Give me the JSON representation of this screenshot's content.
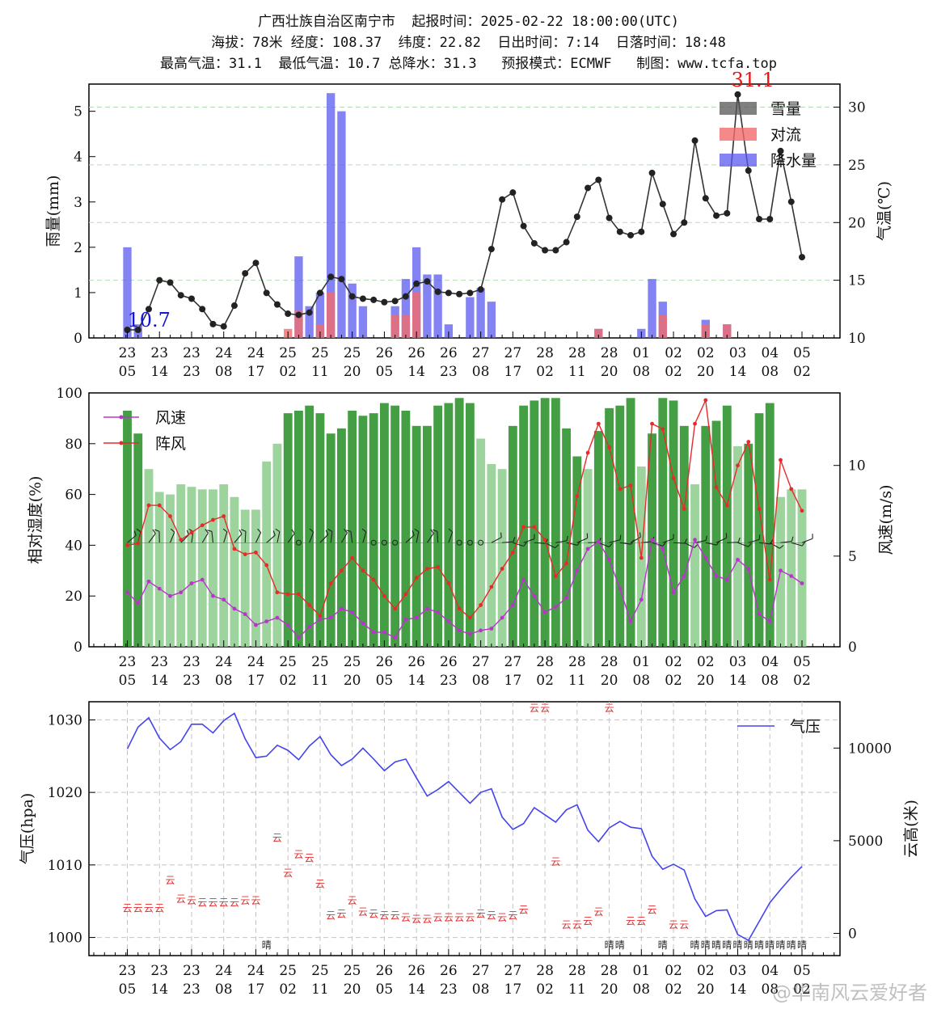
{
  "header": {
    "line1": "广西壮族自治区南宁市  起报时间：2025-02-22 18:00:00(UTC)",
    "line2": "海拔：78米 经度：108.37  纬度：22.82  日出时间：7:14  日落时间：18:48",
    "line3": "最高气温：31.1  最低气温：10.7 总降水：31.3   预报模式：ECMWF   制图：www.tcfa.top"
  },
  "watermark": "@华南风云爱好者",
  "colors": {
    "precip": "#5a5af0",
    "convection": "#f26b6b",
    "snow": "#555555",
    "temp": "#333333",
    "humidity_dark": "#3a9a3a",
    "humidity_light": "#8ccc8c",
    "wind": "#bb33cc",
    "gust": "#e82a2a",
    "pressure": "#4444ee",
    "cloud": "#e03030"
  },
  "chart_data": [
    {
      "type": "bar",
      "title": "",
      "x_tick_labels": [
        "23\n05",
        "23\n14",
        "23\n23",
        "24\n08",
        "24\n17",
        "25\n02",
        "25\n11",
        "25\n20",
        "26\n05",
        "26\n14",
        "26\n23",
        "27\n08",
        "27\n17",
        "28\n02",
        "28\n11",
        "28\n20",
        "01\n08",
        "02\n02",
        "02\n20",
        "03\n14",
        "04\n08",
        "05\n02"
      ],
      "x_tick_index": [
        0,
        3,
        6,
        9,
        12,
        15,
        18,
        21,
        24,
        27,
        30,
        33,
        36,
        39,
        42,
        45,
        48,
        51,
        54,
        57,
        60,
        63
      ],
      "ylabel": "雨量(mm)",
      "y2label": "气温(℃)",
      "ylim": [
        0,
        5.6
      ],
      "y2lim": [
        10,
        32
      ],
      "yticks": [
        "0",
        "1",
        "2",
        "3",
        "4",
        "5"
      ],
      "y2ticks": [
        "10",
        "15",
        "20",
        "25",
        "30"
      ],
      "legend": [
        "雪量",
        "对流",
        "降水量"
      ],
      "precip": [
        2.0,
        0.3,
        0,
        0,
        0,
        0,
        0,
        0,
        0,
        0,
        0,
        0,
        0,
        0,
        0,
        0,
        1.8,
        0.7,
        1.0,
        5.4,
        5.0,
        1.2,
        0.7,
        0,
        0,
        0.7,
        1.3,
        2.0,
        1.4,
        1.4,
        0.3,
        0,
        0.9,
        1.1,
        0.8,
        0,
        0,
        0,
        0,
        0,
        0,
        0,
        0,
        0,
        0.2,
        0,
        0,
        0,
        0.2,
        1.3,
        0.8,
        0,
        0,
        0,
        0.4,
        0,
        0.3,
        0,
        0,
        0,
        0,
        0,
        0,
        0
      ],
      "convection": [
        0,
        0,
        0,
        0,
        0,
        0,
        0,
        0,
        0,
        0,
        0,
        0,
        0,
        0,
        0,
        0.2,
        0.6,
        0,
        0.3,
        1.0,
        0,
        0,
        0,
        0,
        0,
        0.5,
        0.5,
        1.0,
        0,
        0,
        0,
        0,
        0,
        0,
        0,
        0,
        0,
        0,
        0,
        0,
        0,
        0,
        0,
        0,
        0.2,
        0,
        0,
        0,
        0,
        0,
        0.5,
        0,
        0,
        0,
        0.3,
        0,
        0.3,
        0,
        0,
        0,
        0,
        0,
        0,
        0
      ],
      "temperature": [
        10.7,
        10.7,
        12.5,
        15.0,
        14.8,
        13.7,
        13.4,
        12.5,
        11.2,
        11.0,
        12.8,
        15.6,
        16.5,
        13.9,
        12.9,
        12.1,
        12.0,
        12.2,
        13.9,
        15.3,
        15.1,
        13.6,
        13.4,
        13.3,
        13.1,
        13.2,
        13.6,
        14.7,
        14.9,
        14.0,
        13.9,
        13.8,
        13.9,
        14.2,
        17.7,
        22.0,
        22.6,
        19.7,
        18.2,
        17.6,
        17.6,
        18.3,
        20.5,
        23.0,
        23.7,
        20.4,
        19.2,
        18.9,
        19.2,
        24.3,
        21.6,
        19.0,
        20.0,
        27.1,
        22.1,
        20.6,
        20.8,
        31.1,
        24.5,
        20.3,
        20.3,
        26.2,
        21.8,
        17.0
      ],
      "annotations": [
        {
          "text": "10.7",
          "x_index": 0,
          "value": 10.7
        },
        {
          "text": "31.1",
          "x_index": 57,
          "value": 31.1
        }
      ]
    },
    {
      "type": "bar",
      "ylabel": "相对湿度(%)",
      "y2label": "风速(m/s)",
      "ylim": [
        0,
        100
      ],
      "y2lim": [
        0,
        14
      ],
      "yticks": [
        "0",
        "20",
        "40",
        "60",
        "80",
        "100"
      ],
      "y2ticks": [
        "0",
        "5",
        "10"
      ],
      "legend": [
        "风速",
        "阵风"
      ],
      "humidity": [
        93,
        84,
        70,
        61,
        60,
        64,
        63,
        62,
        62,
        64,
        59,
        54,
        54,
        73,
        80,
        92,
        93,
        95,
        92,
        84,
        86,
        93,
        91,
        92,
        96,
        95,
        93,
        87,
        87,
        95,
        96,
        98,
        96,
        82,
        72,
        70,
        87,
        95,
        97,
        98,
        98,
        86,
        75,
        70,
        85,
        94,
        95,
        98,
        71,
        84,
        98,
        97,
        87,
        64,
        87,
        89,
        95,
        79,
        80,
        92,
        96,
        59,
        62,
        62
      ],
      "humidity_dark": [
        1,
        1,
        0,
        0,
        0,
        0,
        0,
        0,
        0,
        0,
        0,
        0,
        0,
        0,
        0,
        1,
        1,
        1,
        1,
        1,
        1,
        1,
        1,
        1,
        1,
        1,
        1,
        1,
        1,
        1,
        1,
        1,
        1,
        0,
        0,
        0,
        1,
        1,
        1,
        1,
        1,
        1,
        1,
        0,
        1,
        1,
        1,
        1,
        0,
        1,
        1,
        1,
        1,
        0,
        1,
        1,
        1,
        0,
        1,
        1,
        1,
        0,
        0,
        0
      ],
      "wind_speed": [
        3.0,
        2.4,
        3.6,
        3.2,
        2.8,
        3.0,
        3.5,
        3.7,
        2.8,
        2.6,
        2.1,
        1.8,
        1.2,
        1.4,
        1.6,
        1.2,
        0.5,
        1.1,
        1.5,
        1.6,
        2.1,
        1.9,
        1.3,
        0.8,
        0.8,
        0.5,
        1.5,
        1.6,
        2.1,
        1.9,
        1.4,
        0.9,
        0.7,
        0.9,
        1.0,
        1.6,
        2.3,
        3.7,
        2.8,
        1.9,
        2.2,
        2.7,
        4.2,
        5.4,
        5.8,
        4.8,
        3.2,
        1.4,
        2.6,
        5.9,
        5.4,
        3.0,
        3.9,
        5.9,
        4.9,
        3.9,
        3.7,
        4.8,
        4.3,
        1.8,
        1.4,
        4.2,
        3.9,
        3.5
      ],
      "gust": [
        5.6,
        5.7,
        7.8,
        7.8,
        7.2,
        5.9,
        6.3,
        6.7,
        7.0,
        7.2,
        5.4,
        5.1,
        5.2,
        4.5,
        3.0,
        2.9,
        2.9,
        2.3,
        1.7,
        3.5,
        4.2,
        4.9,
        4.2,
        3.7,
        2.8,
        2.1,
        2.9,
        3.8,
        4.3,
        4.4,
        3.5,
        2.1,
        1.6,
        2.3,
        3.3,
        4.3,
        5.2,
        6.6,
        6.6,
        5.9,
        3.9,
        4.6,
        8.3,
        10.7,
        12.3,
        11.0,
        8.7,
        8.9,
        4.9,
        12.3,
        12.0,
        9.3,
        7.6,
        12.3,
        13.6,
        8.8,
        7.8,
        10.0,
        11.3,
        7.6,
        3.7,
        10.3,
        8.7,
        7.5
      ],
      "wind_barbs_note": "wind barbs drawn along 41% line"
    },
    {
      "type": "line",
      "ylabel": "气压(hpa)",
      "y2label": "云高(米)",
      "ylim": [
        997.5,
        1032.5
      ],
      "y2lim": [
        -1200,
        12500
      ],
      "yticks": [
        "1000",
        "1010",
        "1020",
        "1030"
      ],
      "y2ticks": [
        "0",
        "5000",
        "10000"
      ],
      "legend": [
        "气压"
      ],
      "pressure": [
        1026.0,
        1029.0,
        1030.3,
        1027.5,
        1025.9,
        1027.0,
        1029.4,
        1029.4,
        1028.2,
        1029.9,
        1030.9,
        1027.4,
        1024.8,
        1025.0,
        1026.5,
        1025.8,
        1024.5,
        1026.4,
        1027.7,
        1025.2,
        1023.7,
        1024.6,
        1026.1,
        1024.6,
        1023.0,
        1024.2,
        1024.6,
        1022.0,
        1019.5,
        1020.4,
        1021.5,
        1020.0,
        1018.5,
        1020.0,
        1020.5,
        1016.6,
        1014.9,
        1015.7,
        1017.9,
        1016.9,
        1015.9,
        1017.6,
        1018.3,
        1014.8,
        1013.2,
        1015.1,
        1016.0,
        1015.2,
        1015.0,
        1011.2,
        1009.4,
        1010.1,
        1009.3,
        1005.3,
        1002.9,
        1003.7,
        1003.8,
        1000.4,
        999.6,
        1002.2,
        1004.8,
        1006.6,
        1008.3,
        1009.8
      ],
      "cloud_labels": [
        {
          "i": 0,
          "h": 1400,
          "t": "云"
        },
        {
          "i": 1,
          "h": 1400,
          "t": "云"
        },
        {
          "i": 2,
          "h": 1400,
          "t": "云"
        },
        {
          "i": 3,
          "h": 1400,
          "t": "云"
        },
        {
          "i": 4,
          "h": 2900,
          "t": "云"
        },
        {
          "i": 5,
          "h": 1900,
          "t": "云"
        },
        {
          "i": 6,
          "h": 1800,
          "t": "云"
        },
        {
          "i": 7,
          "h": 1700,
          "t": "云"
        },
        {
          "i": 8,
          "h": 1700,
          "t": "云"
        },
        {
          "i": 9,
          "h": 1700,
          "t": "云"
        },
        {
          "i": 10,
          "h": 1700,
          "t": "云"
        },
        {
          "i": 11,
          "h": 1800,
          "t": "云"
        },
        {
          "i": 12,
          "h": 1800,
          "t": "云"
        },
        {
          "i": 13,
          "h": -600,
          "t": "晴"
        },
        {
          "i": 14,
          "h": 5200,
          "t": "云"
        },
        {
          "i": 15,
          "h": 3300,
          "t": "云"
        },
        {
          "i": 16,
          "h": 4300,
          "t": "云"
        },
        {
          "i": 17,
          "h": 4100,
          "t": "云"
        },
        {
          "i": 18,
          "h": 2700,
          "t": "云"
        },
        {
          "i": 19,
          "h": 1000,
          "t": "云"
        },
        {
          "i": 20,
          "h": 1100,
          "t": "云"
        },
        {
          "i": 21,
          "h": 1800,
          "t": "云"
        },
        {
          "i": 22,
          "h": 1200,
          "t": "云"
        },
        {
          "i": 23,
          "h": 1100,
          "t": "云"
        },
        {
          "i": 24,
          "h": 1000,
          "t": "云"
        },
        {
          "i": 25,
          "h": 1000,
          "t": "云"
        },
        {
          "i": 26,
          "h": 900,
          "t": "云"
        },
        {
          "i": 27,
          "h": 800,
          "t": "云"
        },
        {
          "i": 28,
          "h": 800,
          "t": "云"
        },
        {
          "i": 29,
          "h": 900,
          "t": "云"
        },
        {
          "i": 30,
          "h": 900,
          "t": "云"
        },
        {
          "i": 31,
          "h": 900,
          "t": "云"
        },
        {
          "i": 32,
          "h": 900,
          "t": "云"
        },
        {
          "i": 33,
          "h": 1100,
          "t": "云"
        },
        {
          "i": 34,
          "h": 1000,
          "t": "云"
        },
        {
          "i": 35,
          "h": 900,
          "t": "云"
        },
        {
          "i": 36,
          "h": 1000,
          "t": "云"
        },
        {
          "i": 37,
          "h": 1300,
          "t": "云"
        },
        {
          "i": 38,
          "h": 12200,
          "t": "云"
        },
        {
          "i": 39,
          "h": 12200,
          "t": "云"
        },
        {
          "i": 40,
          "h": 3900,
          "t": "云"
        },
        {
          "i": 41,
          "h": 500,
          "t": "云"
        },
        {
          "i": 42,
          "h": 500,
          "t": "云"
        },
        {
          "i": 43,
          "h": 700,
          "t": "云"
        },
        {
          "i": 44,
          "h": 1200,
          "t": "云"
        },
        {
          "i": 45,
          "h": 12200,
          "t": "云"
        },
        {
          "i": 45,
          "h": -600,
          "t": "晴"
        },
        {
          "i": 46,
          "h": -600,
          "t": "晴"
        },
        {
          "i": 47,
          "h": 700,
          "t": "云"
        },
        {
          "i": 48,
          "h": 700,
          "t": "云"
        },
        {
          "i": 49,
          "h": 1300,
          "t": "云"
        },
        {
          "i": 50,
          "h": -600,
          "t": "晴"
        },
        {
          "i": 51,
          "h": 500,
          "t": "云"
        },
        {
          "i": 52,
          "h": 500,
          "t": "云"
        },
        {
          "i": 53,
          "h": -600,
          "t": "晴"
        },
        {
          "i": 54,
          "h": -600,
          "t": "晴"
        },
        {
          "i": 55,
          "h": -600,
          "t": "晴"
        },
        {
          "i": 56,
          "h": -600,
          "t": "晴"
        },
        {
          "i": 57,
          "h": -600,
          "t": "晴"
        },
        {
          "i": 58,
          "h": -600,
          "t": "晴"
        },
        {
          "i": 59,
          "h": -600,
          "t": "晴"
        },
        {
          "i": 60,
          "h": -600,
          "t": "晴"
        },
        {
          "i": 61,
          "h": -600,
          "t": "晴"
        },
        {
          "i": 62,
          "h": -600,
          "t": "晴"
        },
        {
          "i": 63,
          "h": -600,
          "t": "晴"
        }
      ]
    }
  ]
}
